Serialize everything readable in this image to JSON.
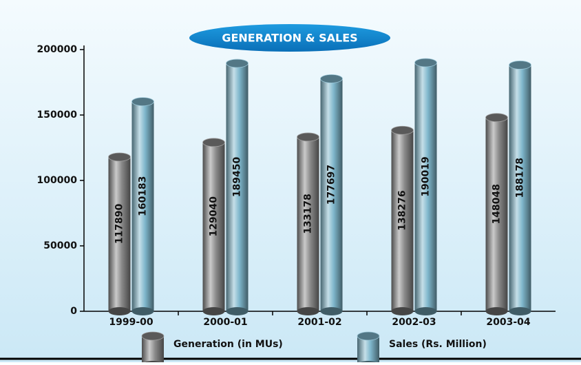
{
  "chart_data": {
    "type": "bar",
    "title": "GENERATION & SALES",
    "categories": [
      "1999-00",
      "2000-01",
      "2001-02",
      "2002-03",
      "2003-04"
    ],
    "series": [
      {
        "name": "Generation (in MUs)",
        "color": "#8a8a8a",
        "values": [
          117890,
          129040,
          133178,
          138276,
          148048
        ]
      },
      {
        "name": "Sales (Rs. Million)",
        "color": "#7fb7cc",
        "values": [
          160183,
          189450,
          177697,
          190019,
          188178
        ]
      }
    ],
    "ylim": [
      0,
      200000
    ],
    "yticks": [
      0,
      50000,
      100000,
      150000,
      200000
    ],
    "grid": false
  }
}
